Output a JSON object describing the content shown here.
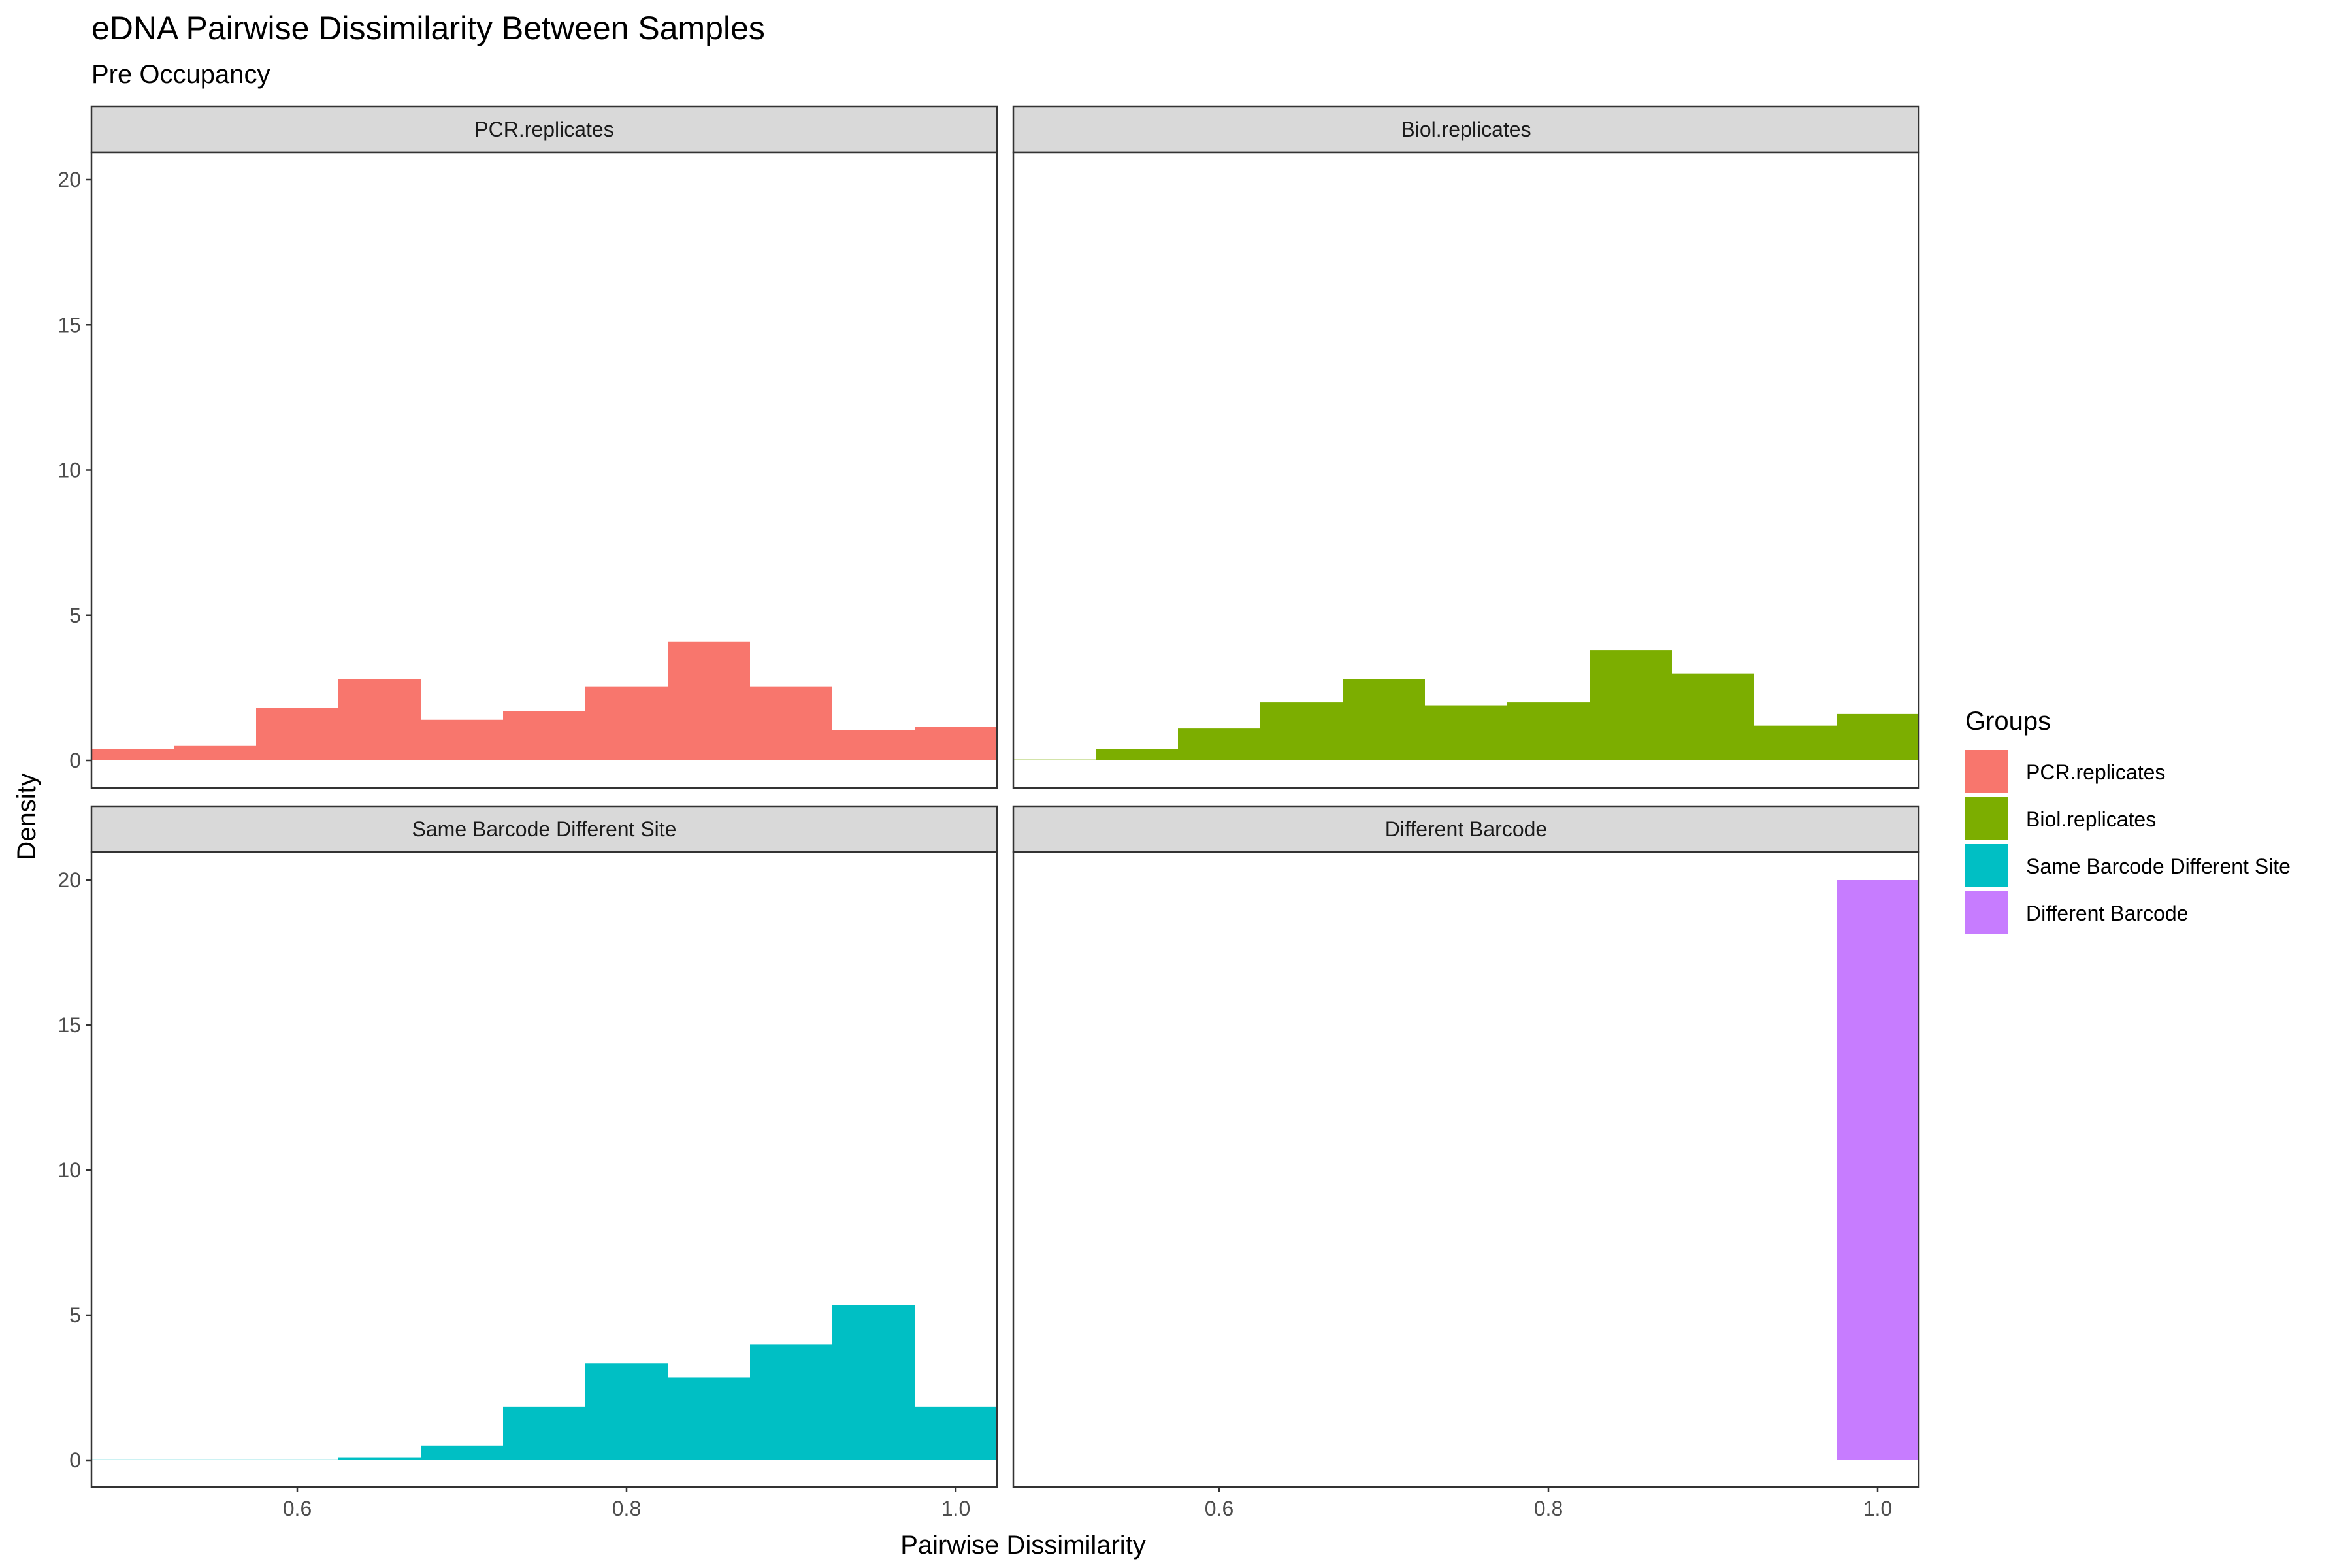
{
  "chart_data": {
    "type": "bar",
    "title": "eDNA Pairwise Dissimilarity Between Samples",
    "subtitle": "Pre Occupancy",
    "xlabel": "Pairwise Dissimilarity",
    "ylabel": "Density",
    "xlim": [
      0.475,
      1.025
    ],
    "ylim": [
      0,
      20
    ],
    "x_ticks": [
      {
        "value": 0.6,
        "label": "0.6"
      },
      {
        "value": 0.8,
        "label": "0.8"
      },
      {
        "value": 1.0,
        "label": "1.0"
      }
    ],
    "y_ticks": [
      {
        "value": 0,
        "label": "0"
      },
      {
        "value": 5,
        "label": "5"
      },
      {
        "value": 10,
        "label": "10"
      },
      {
        "value": 15,
        "label": "15"
      },
      {
        "value": 20,
        "label": "20"
      }
    ],
    "bin_width": 0.05,
    "bins": [
      0.5,
      0.55,
      0.6,
      0.65,
      0.7,
      0.75,
      0.8,
      0.85,
      0.9,
      0.95,
      1.0
    ],
    "grid": false,
    "legend": {
      "title": "Groups",
      "position": "right"
    },
    "series": [
      {
        "name": "PCR.replicates",
        "color": "#F8766D",
        "values": [
          0.4,
          0.5,
          1.8,
          2.8,
          1.4,
          1.7,
          2.55,
          4.1,
          2.55,
          1.05,
          1.15
        ]
      },
      {
        "name": "Biol.replicates",
        "color": "#7CAE00",
        "values": [
          0.03,
          0.4,
          1.1,
          2.0,
          2.8,
          1.9,
          2.0,
          3.8,
          3.0,
          1.2,
          1.6
        ]
      },
      {
        "name": "Same Barcode Different Site",
        "color": "#00BFC4",
        "values": [
          0.02,
          0.02,
          0.02,
          0.1,
          0.5,
          1.85,
          3.35,
          2.85,
          4.0,
          5.35,
          1.85
        ]
      },
      {
        "name": "Different Barcode",
        "color": "#C77CFF",
        "values": [
          0,
          0,
          0,
          0,
          0,
          0,
          0,
          0,
          0,
          0,
          20.0
        ]
      }
    ]
  },
  "colors": {
    "strip_fill": "#D9D9D9",
    "panel_border": "#333333",
    "tick_text": "#4D4D4D"
  }
}
